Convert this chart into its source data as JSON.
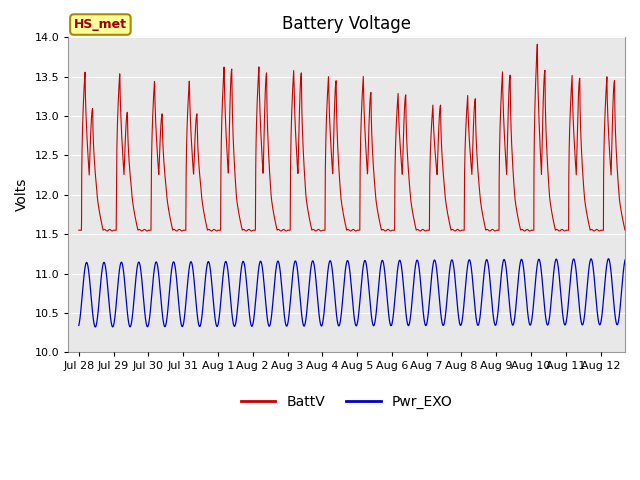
{
  "title": "Battery Voltage",
  "ylabel": "Volts",
  "ylim": [
    10.0,
    14.0
  ],
  "yticks": [
    10.0,
    10.5,
    11.0,
    11.5,
    12.0,
    12.5,
    13.0,
    13.5,
    14.0
  ],
  "xtick_labels": [
    "Jul 28",
    "Jul 29",
    "Jul 30",
    "Jul 31",
    "Aug 1",
    "Aug 2",
    "Aug 3",
    "Aug 4",
    "Aug 5",
    "Aug 6",
    "Aug 7",
    "Aug 8",
    "Aug 9",
    "Aug 10",
    "Aug 11",
    "Aug 12"
  ],
  "bg_color": "#e8e8e8",
  "fig_bg": "#ffffff",
  "line_color_batt": "#cc0000",
  "line_color_exo": "#0000cc",
  "legend_label_batt": "BattV",
  "legend_label_exo": "Pwr_EXO",
  "annotation_text": "HS_met",
  "annotation_bg": "#ffff99",
  "annotation_border": "#aa8800",
  "grid_color": "#ffffff",
  "figsize": [
    6.4,
    4.8
  ],
  "dpi": 100
}
